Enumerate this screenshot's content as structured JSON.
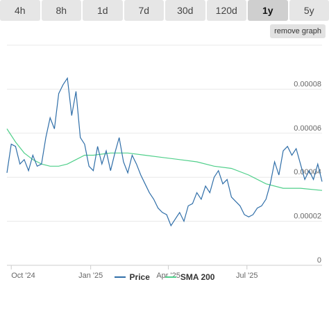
{
  "tabs": [
    {
      "label": "4h",
      "active": false
    },
    {
      "label": "8h",
      "active": false
    },
    {
      "label": "1d",
      "active": false
    },
    {
      "label": "7d",
      "active": false
    },
    {
      "label": "30d",
      "active": false
    },
    {
      "label": "120d",
      "active": false
    },
    {
      "label": "1y",
      "active": true
    },
    {
      "label": "5y",
      "active": false
    }
  ],
  "remove_graph_label": "remove graph",
  "colors": {
    "price": "#2f6ea8",
    "sma": "#4fcf8a",
    "grid": "#e8e8e8"
  },
  "chart_data": {
    "type": "line",
    "x_tick_labels": [
      "Oct '24",
      "Jan '25",
      "Apr '25",
      "Jul '25"
    ],
    "x_ticks": [
      "2024-10-01",
      "2025-01-01",
      "2025-04-01",
      "2025-07-01"
    ],
    "y_tick_labels": [
      "0",
      "0.00002",
      "0.00004",
      "0.00006",
      "0.00008"
    ],
    "ylim": [
      0,
      0.0001
    ],
    "xlim": [
      "2024-09-26",
      "2025-09-26"
    ],
    "grid": true,
    "legend_position": "bottom",
    "series": [
      {
        "name": "Price",
        "x": [
          "2024-09-26",
          "2024-10-01",
          "2024-10-06",
          "2024-10-11",
          "2024-10-16",
          "2024-10-21",
          "2024-10-26",
          "2024-10-31",
          "2024-11-05",
          "2024-11-10",
          "2024-11-15",
          "2024-11-20",
          "2024-11-25",
          "2024-11-30",
          "2024-12-05",
          "2024-12-10",
          "2024-12-15",
          "2024-12-20",
          "2024-12-25",
          "2024-12-30",
          "2025-01-04",
          "2025-01-09",
          "2025-01-14",
          "2025-01-19",
          "2025-01-24",
          "2025-01-29",
          "2025-02-03",
          "2025-02-08",
          "2025-02-13",
          "2025-02-18",
          "2025-02-23",
          "2025-02-28",
          "2025-03-05",
          "2025-03-10",
          "2025-03-15",
          "2025-03-20",
          "2025-03-25",
          "2025-03-30",
          "2025-04-04",
          "2025-04-09",
          "2025-04-14",
          "2025-04-19",
          "2025-04-24",
          "2025-04-29",
          "2025-05-04",
          "2025-05-09",
          "2025-05-14",
          "2025-05-19",
          "2025-05-24",
          "2025-05-29",
          "2025-06-03",
          "2025-06-08",
          "2025-06-13",
          "2025-06-18",
          "2025-06-23",
          "2025-06-28",
          "2025-07-03",
          "2025-07-08",
          "2025-07-13",
          "2025-07-18",
          "2025-07-23",
          "2025-07-28",
          "2025-08-02",
          "2025-08-07",
          "2025-08-12",
          "2025-08-17",
          "2025-08-22",
          "2025-08-27",
          "2025-09-01",
          "2025-09-06",
          "2025-09-11",
          "2025-09-16",
          "2025-09-21",
          "2025-09-26"
        ],
        "values": [
          4.2e-05,
          5.5e-05,
          5.4e-05,
          4.6e-05,
          4.8e-05,
          4.3e-05,
          5e-05,
          4.5e-05,
          4.6e-05,
          5.8e-05,
          6.7e-05,
          6.2e-05,
          7.8e-05,
          8.2e-05,
          8.5e-05,
          6.8e-05,
          7.9e-05,
          5.8e-05,
          5.5e-05,
          4.5e-05,
          4.3e-05,
          5.4e-05,
          4.6e-05,
          5.2e-05,
          4.3e-05,
          5.1e-05,
          5.8e-05,
          4.7e-05,
          4.2e-05,
          5e-05,
          4.6e-05,
          4.1e-05,
          3.7e-05,
          3.3e-05,
          3e-05,
          2.6e-05,
          2.4e-05,
          2.3e-05,
          1.8e-05,
          2.1e-05,
          2.4e-05,
          2e-05,
          2.7e-05,
          2.8e-05,
          3.3e-05,
          3e-05,
          3.6e-05,
          3.3e-05,
          4e-05,
          4.3e-05,
          3.7e-05,
          3.9e-05,
          3.1e-05,
          2.9e-05,
          2.7e-05,
          2.3e-05,
          2.2e-05,
          2.3e-05,
          2.6e-05,
          2.7e-05,
          3e-05,
          3.7e-05,
          4.7e-05,
          4.1e-05,
          5.2e-05,
          5.4e-05,
          5e-05,
          5.3e-05,
          4.6e-05,
          3.9e-05,
          4.3e-05,
          3.9e-05,
          4.6e-05,
          3.8e-05
        ]
      },
      {
        "name": "SMA 200",
        "x": [
          "2024-09-26",
          "2024-10-06",
          "2024-10-16",
          "2024-10-26",
          "2024-11-05",
          "2024-11-15",
          "2024-11-25",
          "2024-12-05",
          "2024-12-15",
          "2024-12-25",
          "2025-01-04",
          "2025-01-24",
          "2025-02-13",
          "2025-03-05",
          "2025-03-25",
          "2025-04-14",
          "2025-05-04",
          "2025-05-24",
          "2025-06-13",
          "2025-07-03",
          "2025-07-23",
          "2025-08-12",
          "2025-09-01",
          "2025-09-26"
        ],
        "values": [
          6.2e-05,
          5.6e-05,
          5.1e-05,
          4.8e-05,
          4.6e-05,
          4.5e-05,
          4.5e-05,
          4.6e-05,
          4.8e-05,
          5e-05,
          5e-05,
          5.1e-05,
          5.1e-05,
          5e-05,
          4.9e-05,
          4.8e-05,
          4.7e-05,
          4.5e-05,
          4.4e-05,
          4.1e-05,
          3.7e-05,
          3.5e-05,
          3.5e-05,
          3.4e-05
        ]
      }
    ]
  }
}
